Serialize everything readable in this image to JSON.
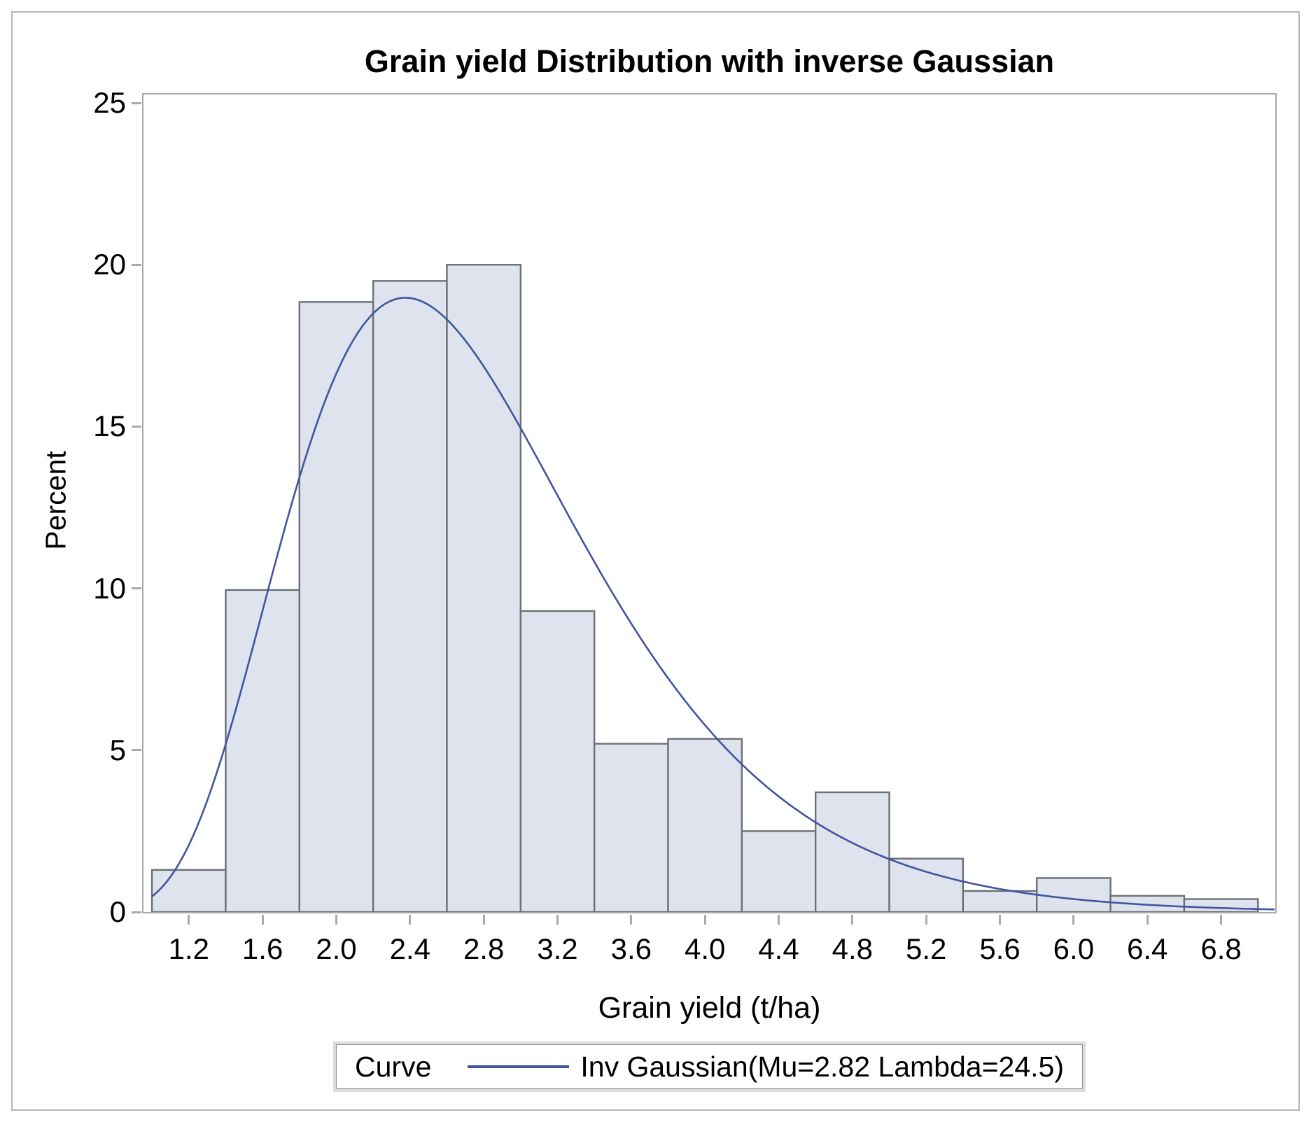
{
  "title": "Grain yield Distribution with inverse Gaussian",
  "legend": {
    "title": "Curve",
    "label": "Inv Gaussian(Mu=2.82 Lambda=24.5)"
  },
  "colors": {
    "bar_fill": "#dee3ee",
    "bar_border": "#6b7076",
    "curve": "#4155a0",
    "axis": "#a5aaaf",
    "frame": "#b5b8ba",
    "legend_border": "#8f8f8f",
    "legend_outline": "#dcdcdc",
    "text": "#000000"
  },
  "chart_data": {
    "type": "bar",
    "subtype": "histogram-with-density-curve",
    "title": "Grain yield Distribution with inverse Gaussian",
    "xlabel": "Grain yield (t/ha)",
    "ylabel": "Percent",
    "xlim": [
      0.954,
      7.094
    ],
    "ylim": [
      0,
      25.26
    ],
    "grid": false,
    "x_tick_labels": [
      "1.2",
      "1.6",
      "2.0",
      "2.4",
      "2.8",
      "3.2",
      "3.6",
      "4.0",
      "4.4",
      "4.8",
      "5.2",
      "5.6",
      "6.0",
      "6.4",
      "6.8"
    ],
    "x_tick_values": [
      1.2,
      1.6,
      2.0,
      2.4,
      2.8,
      3.2,
      3.6,
      4.0,
      4.4,
      4.8,
      5.2,
      5.6,
      6.0,
      6.4,
      6.8
    ],
    "y_tick_labels": [
      "0",
      "5",
      "10",
      "15",
      "20",
      "25"
    ],
    "y_tick_values": [
      0,
      5,
      10,
      15,
      20,
      25
    ],
    "bin_width": 0.4,
    "categories": [
      1.2,
      1.6,
      2.0,
      2.4,
      2.8,
      3.2,
      3.6,
      4.0,
      4.4,
      4.8,
      5.2,
      5.6,
      6.0,
      6.4,
      6.8
    ],
    "values": [
      1.3,
      9.95,
      18.85,
      19.5,
      20.0,
      9.3,
      5.2,
      5.35,
      2.5,
      3.7,
      1.65,
      0.65,
      1.05,
      0.5,
      0.4
    ],
    "curve": {
      "name": "Inv Gaussian",
      "mu": 2.82,
      "lambda": 24.5,
      "percent_scale": 40,
      "x_start": 1.0,
      "x_end": 7.09,
      "legend_position": "bottom"
    }
  }
}
